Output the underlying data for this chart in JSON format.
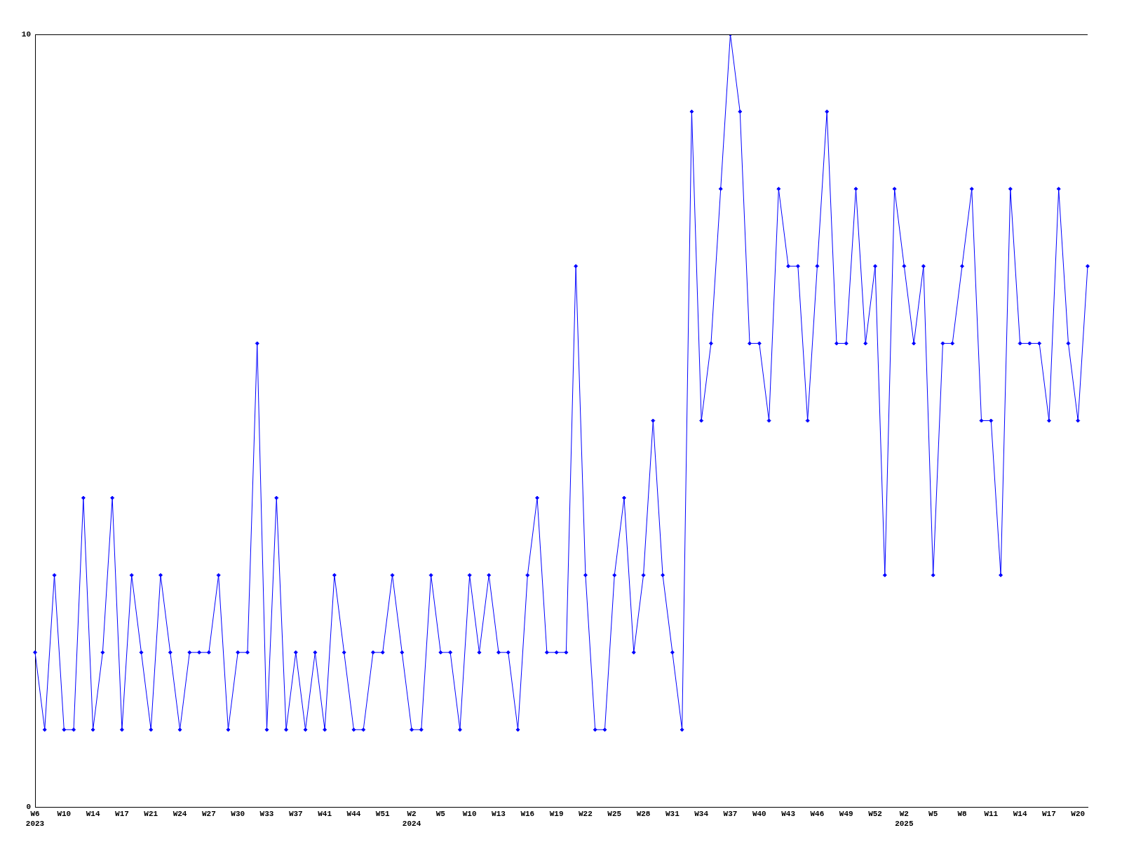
{
  "chart_data": {
    "type": "line",
    "categories": [
      "W6\n2023",
      null,
      null,
      "W10",
      null,
      null,
      "W14",
      null,
      null,
      "W17",
      null,
      null,
      "W21",
      null,
      null,
      "W24",
      null,
      null,
      "W27",
      null,
      null,
      "W30",
      null,
      null,
      "W33",
      null,
      null,
      "W37",
      null,
      null,
      "W41",
      null,
      null,
      "W44",
      null,
      null,
      "W51",
      null,
      null,
      "W2\n2024",
      null,
      null,
      "W5",
      null,
      null,
      "W10",
      null,
      null,
      "W13",
      null,
      null,
      "W16",
      null,
      null,
      "W19",
      null,
      null,
      "W22",
      null,
      null,
      "W25",
      null,
      null,
      "W28",
      null,
      null,
      "W31",
      null,
      null,
      "W34",
      null,
      null,
      "W37",
      null,
      null,
      "W40",
      null,
      null,
      "W43",
      null,
      null,
      "W46",
      null,
      null,
      "W49",
      null,
      null,
      "W52",
      null,
      null,
      "W2\n2025",
      null,
      null,
      "W5",
      null,
      null,
      "W8",
      null,
      null,
      "W11",
      null,
      null,
      "W14",
      null,
      null,
      "W17",
      null,
      null,
      "W20",
      null
    ],
    "series": [
      {
        "color": "#0000ff",
        "values": [
          2,
          1,
          3,
          1,
          1,
          4,
          1,
          2,
          4,
          1,
          3,
          2,
          1,
          3,
          2,
          1,
          2,
          2,
          2,
          3,
          1,
          2,
          2,
          6,
          1,
          4,
          1,
          2,
          1,
          2,
          1,
          3,
          2,
          1,
          1,
          2,
          2,
          3,
          2,
          1,
          1,
          3,
          2,
          2,
          1,
          3,
          2,
          3,
          2,
          2,
          1,
          3,
          4,
          2,
          2,
          2,
          7,
          3,
          1,
          1,
          3,
          4,
          2,
          3,
          5,
          3,
          2,
          1,
          9,
          5,
          6,
          8,
          10,
          9,
          6,
          6,
          5,
          8,
          7,
          7,
          5,
          7,
          9,
          6,
          6,
          8,
          6,
          7,
          3,
          8,
          7,
          6,
          7,
          3,
          6,
          6,
          7,
          8,
          5,
          5,
          3,
          8,
          6,
          6,
          6,
          5,
          8,
          6,
          5,
          7
        ]
      }
    ],
    "ylim": [
      0,
      10
    ],
    "yticks": [
      0,
      10
    ],
    "grid": false,
    "legend": false,
    "marker": "diamond",
    "line_style": "solid"
  }
}
